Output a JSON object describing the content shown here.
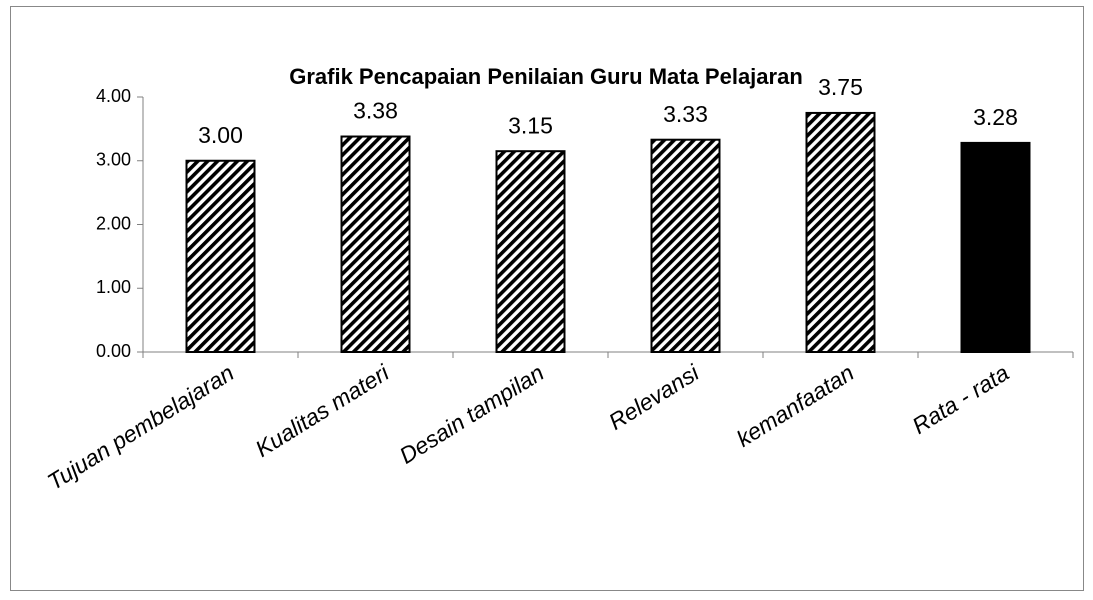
{
  "chart_data": {
    "type": "bar",
    "title": "Grafik Pencapaian Penilaian Guru Mata Pelajaran",
    "categories": [
      "Tujuan pembelajaran",
      "Kualitas materi",
      "Desain tampilan",
      "Relevansi",
      "kemanfaatan",
      "Rata - rata"
    ],
    "values": [
      3.0,
      3.38,
      3.15,
      3.33,
      3.75,
      3.28
    ],
    "value_labels": [
      "3.00",
      "3.38",
      "3.15",
      "3.33",
      "3.75",
      "3.28"
    ],
    "color": "#000000",
    "bar_styles": [
      "hatch",
      "hatch",
      "hatch",
      "hatch",
      "hatch",
      "solid"
    ],
    "ylim": [
      0,
      4
    ],
    "yticks": [
      {
        "value": 0,
        "label": "0.00"
      },
      {
        "value": 1,
        "label": "1.00"
      },
      {
        "value": 2,
        "label": "2.00"
      },
      {
        "value": 3,
        "label": "3.00"
      },
      {
        "value": 4,
        "label": "4.00"
      }
    ],
    "grid": false
  }
}
